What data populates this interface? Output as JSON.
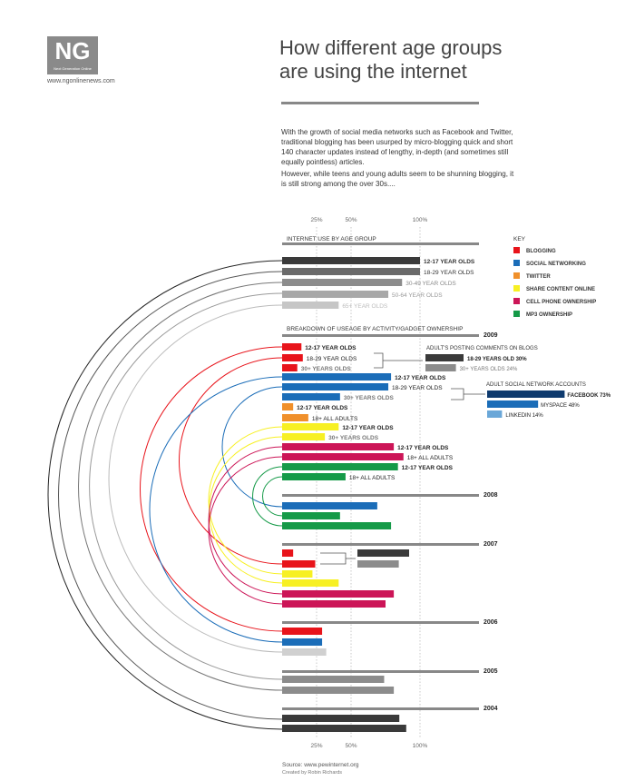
{
  "header": {
    "logo_text": "NG",
    "logo_subtext": "Next Generation Online",
    "site_url": "www.ngonlinenews.com",
    "title_line1": "How different age groups",
    "title_line2": "are using the internet",
    "intro_p1": "With the growth of social media networks such as Facebook and Twitter, traditional blogging has been usurped by micro-blogging quick and short 140 character updates instead of lengthy, in-depth (and sometimes still equally pointless) articles.",
    "intro_p2": "However, while teens and young adults seem to be shunning blogging, it is still strong among the over 30s...."
  },
  "footer": {
    "source": "Source: www.pewinternet.org",
    "credit": "Created by Robin Richards"
  },
  "chart_data": {
    "type": "bar",
    "orientation": "horizontal",
    "xlim": [
      0,
      100
    ],
    "x_ticks": [
      "25%",
      "50%",
      "100%"
    ],
    "colors": {
      "blogging": "#e8141b",
      "social_networking": "#1b6db8",
      "twitter": "#f0902b",
      "share_content": "#f7f023",
      "cell_phone": "#cc1557",
      "mp3": "#159a48",
      "use_colors": [
        "#3a3a3a",
        "#6a6a6a",
        "#8c8c8c",
        "#a8a8a8",
        "#c6c6c6"
      ]
    },
    "key": {
      "title": "KEY",
      "items": [
        {
          "label": "BLOGGING",
          "color": "#e8141b"
        },
        {
          "label": "SOCIAL NETWORKING",
          "color": "#1b6db8"
        },
        {
          "label": "TWITTER",
          "color": "#f0902b"
        },
        {
          "label": "SHARE CONTENT ONLINE",
          "color": "#f7f023"
        },
        {
          "label": "CELL PHONE OWNERSHIP",
          "color": "#cc1557"
        },
        {
          "label": "MP3 OWNERSHIP",
          "color": "#159a48"
        }
      ]
    },
    "internet_use": {
      "title": "INTERNET USE BY AGE GROUP",
      "bars": [
        {
          "label": "12-17 YEAR OLDS",
          "value": 100,
          "color": "#3a3a3a"
        },
        {
          "label": "18-29 YEAR OLDS",
          "value": 100,
          "color": "#6a6a6a"
        },
        {
          "label": "30-49 YEAR OLDS",
          "value": 87,
          "color": "#8c8c8c"
        },
        {
          "label": "50-64 YEAR OLDS",
          "value": 77,
          "color": "#a8a8a8"
        },
        {
          "label": "65+ YEAR OLDS",
          "value": 41,
          "color": "#c6c6c6"
        }
      ]
    },
    "breakdown_title": "BREAKDOWN OF USEAGE BY ACTIVITY/GADGET OWNERSHIP",
    "years": [
      {
        "year": "2009",
        "bars": [
          {
            "label": "12-17 YEAR OLDS",
            "value": 14,
            "color": "#e8141b"
          },
          {
            "label": "18-29 YEAR OLDS",
            "value": 15,
            "color": "#e8141b"
          },
          {
            "label": "30+ YEARS OLDS",
            "value": 11,
            "color": "#e8141b"
          },
          {
            "label": "12-17 YEAR OLDS",
            "value": 79,
            "color": "#1b6db8"
          },
          {
            "label": "18-29 YEAR OLDS",
            "value": 77,
            "color": "#1b6db8"
          },
          {
            "label": "30+ YEARS OLDS",
            "value": 42,
            "color": "#1b6db8"
          },
          {
            "label": "12-17 YEAR OLDS",
            "value": 8,
            "color": "#f0902b"
          },
          {
            "label": "18+ ALL ADULTS",
            "value": 19,
            "color": "#f0902b"
          },
          {
            "label": "12-17 YEAR OLDS",
            "value": 41,
            "color": "#f7f023"
          },
          {
            "label": "30+ YEARS OLDS",
            "value": 31,
            "color": "#f7f023"
          },
          {
            "label": "12-17 YEAR OLDS",
            "value": 81,
            "color": "#cc1557"
          },
          {
            "label": "18+ ALL ADULTS",
            "value": 88,
            "color": "#cc1557"
          },
          {
            "label": "12-17 YEAR OLDS",
            "value": 84,
            "color": "#159a48"
          },
          {
            "label": "18+ ALL ADULTS",
            "value": 46,
            "color": "#159a48"
          }
        ]
      },
      {
        "year": "2008",
        "bars": [
          {
            "label": "",
            "value": 69,
            "color": "#1b6db8"
          },
          {
            "label": "",
            "value": 42,
            "color": "#159a48"
          },
          {
            "label": "",
            "value": 79,
            "color": "#159a48"
          }
        ]
      },
      {
        "year": "2007",
        "bars": [
          {
            "label": "",
            "value": 8,
            "color": "#e8141b"
          },
          {
            "label": "",
            "value": 24,
            "color": "#e8141b"
          },
          {
            "label": "",
            "value": 22,
            "color": "#f7f023"
          },
          {
            "label": "",
            "value": 41,
            "color": "#f7f023"
          },
          {
            "label": "",
            "value": 81,
            "color": "#cc1557"
          },
          {
            "label": "",
            "value": 75,
            "color": "#cc1557"
          }
        ]
      },
      {
        "year": "2006",
        "bars": [
          {
            "label": "",
            "value": 29,
            "color": "#e8141b"
          },
          {
            "label": "",
            "value": 29,
            "color": "#1b6db8"
          },
          {
            "label": "",
            "value": 32,
            "color": "#d0d0d0"
          }
        ]
      },
      {
        "year": "2005",
        "bars": [
          {
            "label": "",
            "value": 74,
            "color": "#8c8c8c"
          },
          {
            "label": "",
            "value": 81,
            "color": "#8c8c8c"
          }
        ]
      },
      {
        "year": "2004",
        "bars": [
          {
            "label": "",
            "value": 85,
            "color": "#3a3a3a"
          },
          {
            "label": "",
            "value": 90,
            "color": "#3a3a3a"
          }
        ]
      }
    ],
    "adults_posting_comments": {
      "title": "ADULT'S POSTING COMMENTS ON BLOGS",
      "items": [
        {
          "label": "18-29 YEARS OLD",
          "value": 30,
          "value_label": "30%",
          "color": "#3a3a3a"
        },
        {
          "label": "30+ YEARS OLDS",
          "value": 24,
          "value_label": "24%",
          "color": "#8c8c8c"
        }
      ]
    },
    "adult_social_network_accounts": {
      "title": "ADULT SOCIAL NETWORK ACCOUNTS",
      "items": [
        {
          "label": "FACEBOOK",
          "value": 73,
          "value_label": "73%",
          "color": "#0e3a6e"
        },
        {
          "label": "MYSPACE",
          "value": 48,
          "value_label": "48%",
          "color": "#1b6db8"
        },
        {
          "label": "LINKEDIN",
          "value": 14,
          "value_label": "14%",
          "color": "#6aa7d8"
        }
      ]
    },
    "comparison_2007": [
      {
        "value": 30,
        "color": "#3a3a3a"
      },
      {
        "value": 24,
        "color": "#8c8c8c"
      }
    ]
  }
}
